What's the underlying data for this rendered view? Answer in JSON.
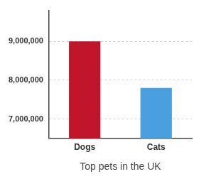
{
  "chart_data": {
    "type": "bar",
    "xlabel": "Top pets in the UK",
    "categories": [
      "Dogs",
      "Cats"
    ],
    "values": [
      9000000,
      7800000
    ],
    "colors": [
      "#c0152a",
      "#4a9fdf"
    ],
    "ylim": [
      6500000,
      9800000
    ],
    "yticks": [
      {
        "value": 7000000,
        "label": "7,000,000"
      },
      {
        "value": 8000000,
        "label": "8,000,000"
      },
      {
        "value": 9000000,
        "label": "9,000,000"
      }
    ],
    "grid": true
  }
}
